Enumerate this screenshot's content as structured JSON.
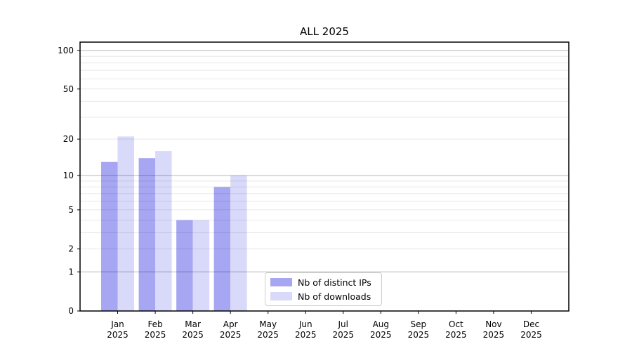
{
  "chart_data": {
    "type": "bar",
    "title": "ALL 2025",
    "x_tick_months": [
      "Jan",
      "Feb",
      "Mar",
      "Apr",
      "May",
      "Jun",
      "Jul",
      "Aug",
      "Sep",
      "Oct",
      "Nov",
      "Dec"
    ],
    "x_tick_year": "2025",
    "y_ticks": [
      0,
      1,
      2,
      5,
      10,
      20,
      50,
      100
    ],
    "y_scale": "log(1+x)",
    "ylim": [
      0,
      116
    ],
    "grid": true,
    "series": [
      {
        "name": "Nb of distinct IPs",
        "color": "#a6a6f2",
        "values": [
          13,
          14,
          4,
          8,
          0,
          0,
          0,
          0,
          0,
          0,
          0,
          0
        ]
      },
      {
        "name": "Nb of downloads",
        "color": "#d9d9fa",
        "values": [
          21,
          16,
          4,
          10,
          0,
          0,
          0,
          0,
          0,
          0,
          0,
          0
        ]
      }
    ],
    "legend_position": "lower center"
  },
  "colors": {
    "background": "#ffffff",
    "axis": "#000000",
    "grid_major": "rgba(0,0,0,0.28)",
    "grid_minor": "rgba(0,0,0,0.09)",
    "legend_border": "#cccccc",
    "text": "#000000"
  }
}
